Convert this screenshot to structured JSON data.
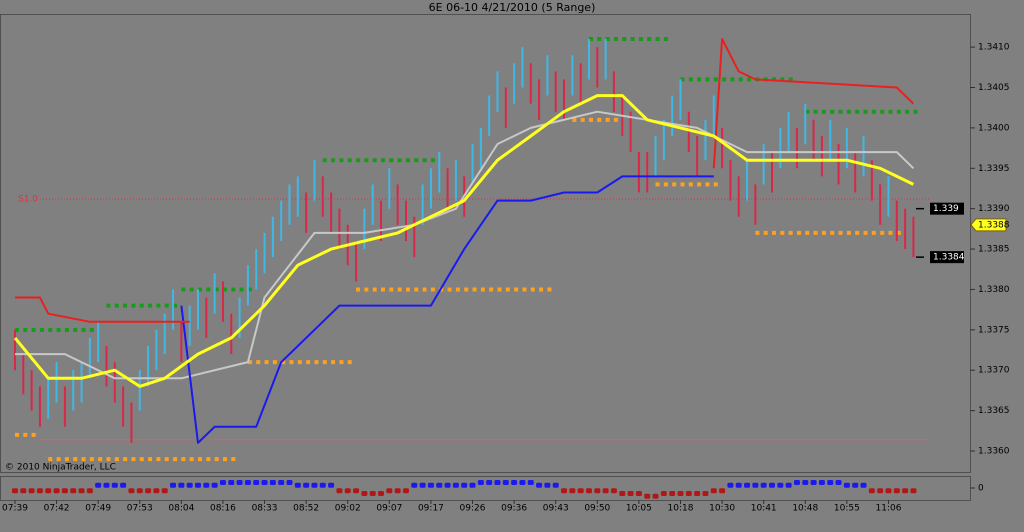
{
  "chart_data": {
    "type": "range-bar",
    "title": "6E 06-10  4/21/2010 (5 Range)",
    "copyright": "© 2010 NinjaTrader, LLC",
    "ylim": [
      1.33574,
      1.34141
    ],
    "yticks": [
      {
        "value": 1.341,
        "label": "1.3410"
      },
      1.3405,
      {
        "value": 1.34,
        "label": "1.3400"
      },
      1.3395,
      {
        "value": 1.339,
        "label": "1.3390"
      },
      1.3385,
      {
        "value": 1.338,
        "label": "1.3380"
      },
      1.3375,
      {
        "value": 1.337,
        "label": "1.3370"
      },
      1.3365,
      {
        "value": 1.336,
        "label": "1.3360"
      }
    ],
    "xlim": [
      -1.8,
      114.8
    ],
    "xticks": [
      {
        "value": 0,
        "label": "07:39"
      },
      {
        "value": 5,
        "label": "07:42"
      },
      {
        "value": 10,
        "label": "07:49"
      },
      {
        "value": 15,
        "label": "07:53"
      },
      {
        "value": 20,
        "label": "08:04"
      },
      {
        "value": 25,
        "label": "08:16"
      },
      {
        "value": 30,
        "label": "08:33"
      },
      {
        "value": 35,
        "label": "08:52"
      },
      {
        "value": 40,
        "label": "09:02"
      },
      {
        "value": 45,
        "label": "09:07"
      },
      {
        "value": 50,
        "label": "09:17"
      },
      {
        "value": 55,
        "label": "09:26"
      },
      {
        "value": 60,
        "label": "09:36"
      },
      {
        "value": 65,
        "label": "09:43"
      },
      {
        "value": 70,
        "label": "09:50"
      },
      {
        "value": 75,
        "label": "10:05"
      },
      {
        "value": 80,
        "label": "10:18"
      },
      {
        "value": 85,
        "label": "10:30"
      },
      {
        "value": 90,
        "label": "10:41"
      },
      {
        "value": 95,
        "label": "10:48"
      },
      {
        "value": 100,
        "label": "10:55"
      },
      {
        "value": 105,
        "label": "11:06"
      }
    ],
    "bars": {
      "up_color": "#3fb8e6",
      "down_color": "#d8284a",
      "range": 0.0005,
      "low": [
        1.337,
        1.3367,
        1.3365,
        1.3363,
        1.3364,
        1.3366,
        1.3363,
        1.3365,
        1.3366,
        1.3369,
        1.3371,
        1.3368,
        1.3366,
        1.3363,
        1.3361,
        1.3365,
        1.3368,
        1.337,
        1.3372,
        1.3375,
        1.3371,
        1.3373,
        1.3375,
        1.3374,
        1.3377,
        1.3376,
        1.3372,
        1.3374,
        1.3378,
        1.338,
        1.3382,
        1.3384,
        1.3386,
        1.3388,
        1.3389,
        1.3387,
        1.3391,
        1.3389,
        1.3387,
        1.3385,
        1.3383,
        1.3381,
        1.3385,
        1.3388,
        1.3386,
        1.339,
        1.3388,
        1.3386,
        1.3384,
        1.3388,
        1.339,
        1.3392,
        1.339,
        1.3391,
        1.3389,
        1.3393,
        1.3395,
        1.3399,
        1.3402,
        1.34,
        1.3403,
        1.3405,
        1.3403,
        1.3401,
        1.3404,
        1.3402,
        1.3401,
        1.3404,
        1.3403,
        1.3406,
        1.3405,
        1.3406,
        1.3402,
        1.3399,
        1.3397,
        1.3392,
        1.3392,
        1.3394,
        1.3396,
        1.3399,
        1.3401,
        1.3397,
        1.3394,
        1.3396,
        1.3399,
        1.3395,
        1.3391,
        1.3389,
        1.3391,
        1.3388,
        1.3393,
        1.3392,
        1.3395,
        1.3397,
        1.3395,
        1.3398,
        1.3396,
        1.3394,
        1.3396,
        1.3393,
        1.3395,
        1.3392,
        1.3394,
        1.3391,
        1.3388,
        1.3389,
        1.3386,
        1.3385,
        1.3384
      ]
    },
    "lines": [
      {
        "color": "#c8c8c8",
        "x": [
          0,
          6,
          12,
          20,
          28,
          30,
          36,
          42,
          48,
          53,
          58,
          62,
          70,
          76,
          82,
          88,
          106,
          108
        ],
        "values": [
          1.3372,
          1.3372,
          1.3369,
          1.3369,
          1.3371,
          1.3379,
          1.3387,
          1.3387,
          1.3388,
          1.339,
          1.3398,
          1.34,
          1.3402,
          1.3401,
          1.34,
          1.3397,
          1.3397,
          1.3395
        ]
      },
      {
        "color": "#1a1aee",
        "x": [
          20,
          22,
          24,
          29,
          32,
          36,
          39,
          50,
          54,
          58,
          62,
          66,
          70,
          73,
          84
        ],
        "values": [
          1.3378,
          1.3361,
          1.3363,
          1.3363,
          1.3371,
          1.3375,
          1.3378,
          1.3378,
          1.3385,
          1.3391,
          1.3391,
          1.3392,
          1.3392,
          1.3394,
          1.3394
        ]
      },
      {
        "color": "#e82020",
        "x": [
          0,
          3,
          4,
          9,
          21,
          50,
          84,
          85,
          87,
          89,
          106,
          108
        ],
        "values": [
          1.3379,
          1.3379,
          1.3377,
          1.3376,
          1.3376,
          null,
          1.3395,
          1.3411,
          1.3407,
          1.3406,
          1.3405,
          1.3403
        ]
      },
      {
        "color": "#ffff20",
        "x": [
          0,
          4,
          8,
          12,
          15,
          18,
          22,
          26,
          30,
          34,
          38,
          42,
          46,
          50,
          54,
          58,
          62,
          66,
          70,
          73,
          76,
          80,
          84,
          88,
          92,
          96,
          100,
          104,
          108
        ],
        "values": [
          1.3374,
          1.3369,
          1.3369,
          1.337,
          1.3368,
          1.3369,
          1.3372,
          1.3374,
          1.3378,
          1.3383,
          1.3385,
          1.3386,
          1.3387,
          1.3389,
          1.3391,
          1.3396,
          1.3399,
          1.3402,
          1.3404,
          1.3404,
          1.3401,
          1.34,
          1.3399,
          1.3396,
          1.3396,
          1.3396,
          1.3396,
          1.3395,
          1.3393
        ]
      }
    ],
    "levels": [
      {
        "color": "#1a9a1a",
        "start": 0,
        "end": 10,
        "value": 1.3375
      },
      {
        "color": "#1a9a1a",
        "start": 11,
        "end": 20,
        "value": 1.3378
      },
      {
        "color": "#1a9a1a",
        "start": 20,
        "end": 29,
        "value": 1.338
      },
      {
        "color": "#1a9a1a",
        "start": 37,
        "end": 51,
        "value": 1.3396
      },
      {
        "color": "#1a9a1a",
        "start": 69,
        "end": 79,
        "value": 1.3411
      },
      {
        "color": "#1a9a1a",
        "start": 80,
        "end": 94,
        "value": 1.3406
      },
      {
        "color": "#1a9a1a",
        "start": 95,
        "end": 109,
        "value": 1.3402
      },
      {
        "color": "#ffa020",
        "start": 0,
        "end": 3,
        "value": 1.3362
      },
      {
        "color": "#ffa020",
        "start": 4,
        "end": 27,
        "value": 1.3359
      },
      {
        "color": "#ffa020",
        "start": 28,
        "end": 41,
        "value": 1.3371
      },
      {
        "color": "#ffa020",
        "start": 41,
        "end": 65,
        "value": 1.338
      },
      {
        "color": "#ffa020",
        "start": 67,
        "end": 73,
        "value": 1.3401
      },
      {
        "color": "#ffa020",
        "start": 77,
        "end": 85,
        "value": 1.3393
      },
      {
        "color": "#ffa020",
        "start": 89,
        "end": 107,
        "value": 1.3387
      }
    ],
    "pivot": {
      "label": "S1.0",
      "value": 1.33912,
      "color": "#e03040"
    },
    "reference_line": {
      "value": 1.33614,
      "color": "#d86070"
    },
    "price_labels": [
      {
        "label": "1.339",
        "value": 1.339
      },
      {
        "label": "1.3384",
        "value": 1.3384
      }
    ],
    "last_price": {
      "label": "1.3388",
      "value": 1.3388,
      "color": "#ffff20"
    },
    "indicator": {
      "ylim": [
        -4,
        4
      ],
      "yticks": [
        0
      ],
      "up_color": "#1a1aee",
      "down_color": "#b01818",
      "values": [
        -1,
        -1,
        -1,
        -1,
        -1,
        -1,
        -1,
        -1,
        -1,
        -1,
        1,
        1,
        1,
        1,
        -1,
        -1,
        -1,
        -1,
        -1,
        1,
        1,
        1,
        1,
        1,
        1,
        2,
        2,
        2,
        2,
        2,
        2,
        2,
        2,
        2,
        1,
        1,
        1,
        1,
        1,
        -1,
        -1,
        -1,
        -2,
        -2,
        -2,
        -1,
        -1,
        -1,
        1,
        1,
        1,
        1,
        1,
        1,
        1,
        1,
        2,
        2,
        2,
        2,
        2,
        2,
        2,
        1,
        1,
        1,
        -1,
        -1,
        -1,
        -1,
        -1,
        -1,
        -1,
        -2,
        -2,
        -2,
        -3,
        -3,
        -2,
        -2,
        -2,
        -2,
        -2,
        -2,
        -1,
        -1,
        1,
        1,
        1,
        1,
        1,
        1,
        1,
        1,
        2,
        2,
        2,
        2,
        2,
        2,
        1,
        1,
        1,
        -1,
        -1,
        -1,
        -1,
        -1,
        -1
      ]
    }
  }
}
